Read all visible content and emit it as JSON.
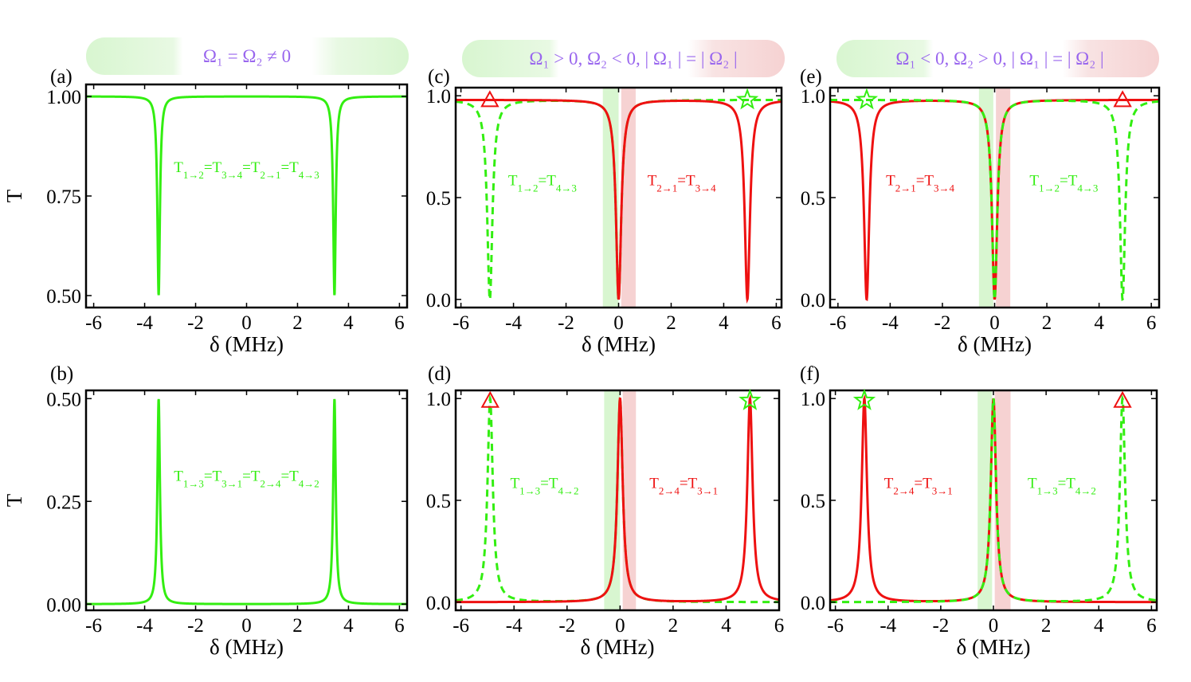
{
  "figure": {
    "banners": [
      {
        "text": "Ω₁ = Ω₂ ≠ 0"
      },
      {
        "text": "Ω₁ > 0, Ω₂ < 0, | Ω₁ | = | Ω₂ |"
      },
      {
        "text": "Ω₁ < 0, Ω₂ > 0, | Ω₁ | = | Ω₂ |"
      }
    ],
    "colors": {
      "green": "#33ee11",
      "red": "#ee1111",
      "banner_text": "#9966ee",
      "green_band": "#d8f6d0",
      "red_band": "#f6d2d2",
      "frame": "#000000"
    }
  },
  "chart_data": [
    {
      "panel": "(a)",
      "type": "line",
      "ylabel": "T",
      "xlabel": "δ (MHz)",
      "xlim": [
        -6.3,
        6.3
      ],
      "ylim": [
        0.47,
        1.03
      ],
      "xticks": [
        -6,
        -4,
        -2,
        0,
        2,
        4,
        6
      ],
      "xtick_labels": [
        "-6",
        "-4",
        "-2",
        "0",
        "2",
        "4",
        "6"
      ],
      "yticks": [
        0.5,
        0.75,
        1.0
      ],
      "ytick_labels": [
        "0.50",
        "0.75",
        "1.00"
      ],
      "bands": [],
      "series": [
        {
          "name": "T1→2=T3→4=T2→1=T4→3",
          "color": "green",
          "dashed": false,
          "profile": "dip",
          "baseline": 1.0,
          "depth": 0.5,
          "width": 0.06,
          "centers": [
            -3.45,
            3.45
          ]
        }
      ],
      "annotations": [
        {
          "text": "T1→2=T3→4=T2→1=T4→3",
          "color": "green",
          "x": 0.0,
          "y": 0.81
        }
      ],
      "markers": []
    },
    {
      "panel": "(b)",
      "type": "line",
      "ylabel": "T",
      "xlabel": "δ (MHz)",
      "xlim": [
        -6.3,
        6.3
      ],
      "ylim": [
        -0.015,
        0.52
      ],
      "xticks": [
        -6,
        -4,
        -2,
        0,
        2,
        4,
        6
      ],
      "xtick_labels": [
        "-6",
        "-4",
        "-2",
        "0",
        "2",
        "4",
        "6"
      ],
      "yticks": [
        0.0,
        0.25,
        0.5
      ],
      "ytick_labels": [
        "0.00",
        "0.25",
        "0.50"
      ],
      "bands": [],
      "series": [
        {
          "name": "T1→3=T3→1=T2→4=T4→2",
          "color": "green",
          "dashed": false,
          "profile": "peak",
          "baseline": 0.0,
          "depth": 0.5,
          "width": 0.06,
          "centers": [
            -3.45,
            3.45
          ]
        }
      ],
      "annotations": [
        {
          "text": "T1→3=T3→1=T2→4=T4→2",
          "color": "green",
          "x": 0.0,
          "y": 0.3
        }
      ],
      "markers": []
    },
    {
      "panel": "(c)",
      "type": "line",
      "ylabel": "",
      "xlabel": "δ (MHz)",
      "xlim": [
        -6.2,
        6.2
      ],
      "ylim": [
        -0.04,
        1.04
      ],
      "xticks": [
        -6,
        -4,
        -2,
        0,
        2,
        4,
        6
      ],
      "xtick_labels": [
        "-6",
        "-4",
        "-2",
        "0",
        "2",
        "4",
        "6"
      ],
      "yticks": [
        0.0,
        0.5,
        1.0
      ],
      "ytick_labels": [
        "0.0",
        "0.5",
        "1.0"
      ],
      "bands": [
        {
          "from": -0.6,
          "to": 0.0,
          "color": "green_band"
        },
        {
          "from": 0.1,
          "to": 0.65,
          "color": "red_band"
        }
      ],
      "series": [
        {
          "name": "T1→2=T4→3",
          "color": "green",
          "dashed": true,
          "profile": "dip",
          "baseline": 0.98,
          "depth": 0.98,
          "width": 0.12,
          "centers": [
            -4.9,
            0.0
          ]
        },
        {
          "name": "T2→1=T3→4",
          "color": "red",
          "dashed": false,
          "profile": "dip",
          "baseline": 0.98,
          "depth": 0.98,
          "width": 0.12,
          "centers": [
            0.0,
            4.9
          ]
        }
      ],
      "annotations": [
        {
          "text": "T1→2=T4→3",
          "color": "green",
          "x": -2.9,
          "y": 0.56
        },
        {
          "text": "T2→1=T3→4",
          "color": "red",
          "x": 2.4,
          "y": 0.56
        }
      ],
      "markers": [
        {
          "shape": "triangle",
          "color": "red",
          "x": -4.9,
          "y": 0.98
        },
        {
          "shape": "star",
          "color": "green",
          "x": 4.9,
          "y": 0.98
        }
      ]
    },
    {
      "panel": "(d)",
      "type": "line",
      "ylabel": "",
      "xlabel": "δ (MHz)",
      "xlim": [
        -6.2,
        6.0
      ],
      "ylim": [
        -0.04,
        1.04
      ],
      "xticks": [
        -6,
        -4,
        -2,
        0,
        2,
        4,
        6
      ],
      "xtick_labels": [
        "-6",
        "-4",
        "-2",
        "0",
        "2",
        "4",
        "6"
      ],
      "yticks": [
        0.0,
        0.5,
        1.0
      ],
      "ytick_labels": [
        "0.0",
        "0.5",
        "1.0"
      ],
      "bands": [
        {
          "from": -0.6,
          "to": 0.0,
          "color": "green_band"
        },
        {
          "from": 0.1,
          "to": 0.6,
          "color": "red_band"
        }
      ],
      "series": [
        {
          "name": "T1→3=T4→2",
          "color": "green",
          "dashed": true,
          "profile": "peak",
          "baseline": 0.0,
          "depth": 1.0,
          "width": 0.12,
          "centers": [
            -4.9,
            0.0
          ]
        },
        {
          "name": "T2→4=T3→1",
          "color": "red",
          "dashed": false,
          "profile": "peak",
          "baseline": 0.0,
          "depth": 1.0,
          "width": 0.12,
          "centers": [
            0.0,
            4.9
          ]
        }
      ],
      "annotations": [
        {
          "text": "T1→3=T4→2",
          "color": "green",
          "x": -2.85,
          "y": 0.56
        },
        {
          "text": "T2→4=T3→1",
          "color": "red",
          "x": 2.4,
          "y": 0.56
        }
      ],
      "markers": [
        {
          "shape": "triangle",
          "color": "red",
          "x": -4.9,
          "y": 0.99
        },
        {
          "shape": "star",
          "color": "green",
          "x": 4.9,
          "y": 0.99
        }
      ]
    },
    {
      "panel": "(e)",
      "type": "line",
      "ylabel": "",
      "xlabel": "δ (MHz)",
      "xlim": [
        -6.3,
        6.3
      ],
      "ylim": [
        -0.04,
        1.04
      ],
      "xticks": [
        -6,
        -4,
        -2,
        0,
        2,
        4,
        6
      ],
      "xtick_labels": [
        "-6",
        "-4",
        "-2",
        "0",
        "2",
        "4",
        "6"
      ],
      "yticks": [
        0.0,
        0.5,
        1.0
      ],
      "ytick_labels": [
        "0.0",
        "0.5",
        "1.0"
      ],
      "bands": [
        {
          "from": -0.6,
          "to": -0.05,
          "color": "green_band"
        },
        {
          "from": 0.05,
          "to": 0.6,
          "color": "red_band"
        }
      ],
      "series": [
        {
          "name": "T2→1=T3→4",
          "color": "red",
          "dashed": false,
          "profile": "dip",
          "baseline": 0.98,
          "depth": 0.98,
          "width": 0.12,
          "centers": [
            -4.9,
            0.0
          ]
        },
        {
          "name": "T1→2=T4→3",
          "color": "green",
          "dashed": true,
          "profile": "dip",
          "baseline": 0.98,
          "depth": 0.98,
          "width": 0.12,
          "centers": [
            0.0,
            4.9
          ]
        }
      ],
      "annotations": [
        {
          "text": "T2→1=T3→4",
          "color": "red",
          "x": -2.85,
          "y": 0.56
        },
        {
          "text": "T1→2=T4→3",
          "color": "green",
          "x": 2.65,
          "y": 0.56
        }
      ],
      "markers": [
        {
          "shape": "star",
          "color": "green",
          "x": -4.9,
          "y": 0.98
        },
        {
          "shape": "triangle",
          "color": "red",
          "x": 4.9,
          "y": 0.98
        }
      ]
    },
    {
      "panel": "(f)",
      "type": "line",
      "ylabel": "",
      "xlabel": "δ (MHz)",
      "xlim": [
        -6.2,
        6.2
      ],
      "ylim": [
        -0.04,
        1.04
      ],
      "xticks": [
        -6,
        -4,
        -2,
        0,
        2,
        4,
        6
      ],
      "xtick_labels": [
        "-6",
        "-4",
        "-2",
        "0",
        "2",
        "4",
        "6"
      ],
      "yticks": [
        0.0,
        0.5,
        1.0
      ],
      "ytick_labels": [
        "0.0",
        "0.5",
        "1.0"
      ],
      "bands": [
        {
          "from": -0.6,
          "to": -0.05,
          "color": "green_band"
        },
        {
          "from": 0.05,
          "to": 0.65,
          "color": "red_band"
        }
      ],
      "series": [
        {
          "name": "T2→4=T3→1",
          "color": "red",
          "dashed": false,
          "profile": "peak",
          "baseline": 0.0,
          "depth": 1.0,
          "width": 0.12,
          "centers": [
            -4.9,
            0.0
          ]
        },
        {
          "name": "T1→3=T4→2",
          "color": "green",
          "dashed": true,
          "profile": "peak",
          "baseline": 0.0,
          "depth": 1.0,
          "width": 0.12,
          "centers": [
            0.0,
            4.9
          ]
        }
      ],
      "annotations": [
        {
          "text": "T2→4=T3→1",
          "color": "red",
          "x": -2.85,
          "y": 0.56
        },
        {
          "text": "T1→3=T4→2",
          "color": "green",
          "x": 2.6,
          "y": 0.56
        }
      ],
      "markers": [
        {
          "shape": "star",
          "color": "green",
          "x": -4.9,
          "y": 0.99
        },
        {
          "shape": "triangle",
          "color": "red",
          "x": 4.9,
          "y": 0.99
        }
      ]
    }
  ]
}
